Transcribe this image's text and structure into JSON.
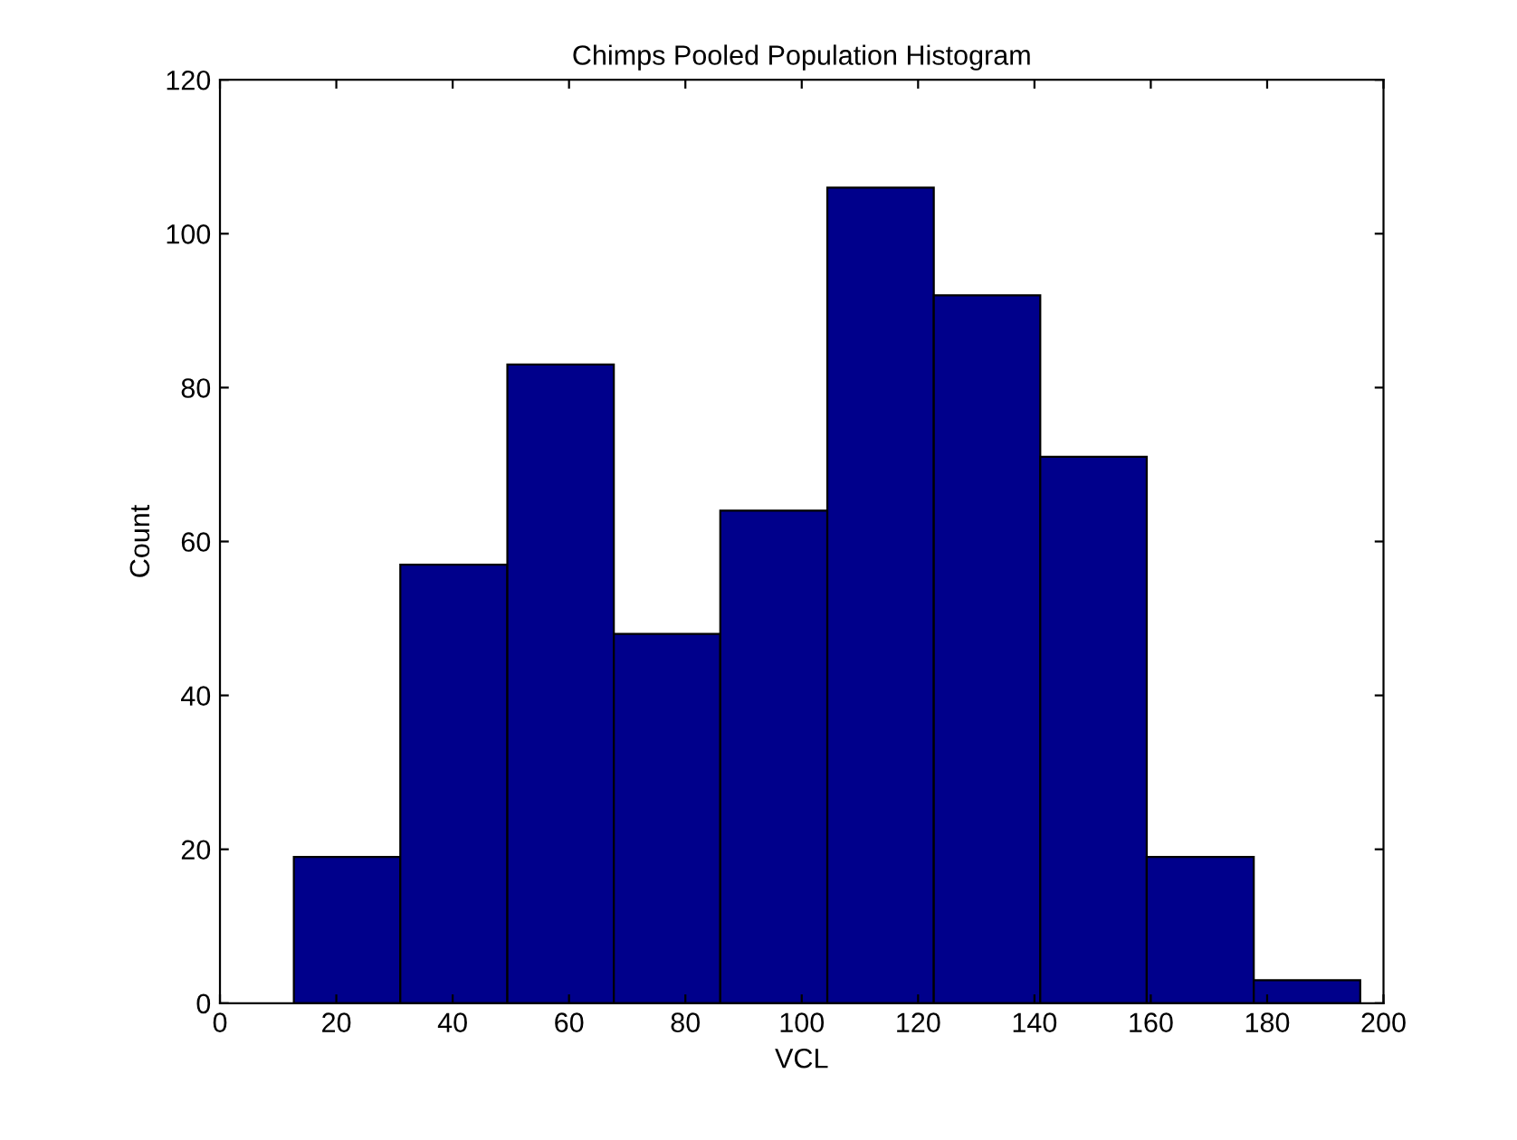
{
  "chart_data": {
    "type": "histogram",
    "title": "Chimps Pooled Population Histogram",
    "xlabel": "VCL",
    "ylabel": "Count",
    "bins": [
      12.7,
      31.0,
      49.4,
      67.7,
      86.0,
      104.4,
      122.7,
      141.0,
      159.3,
      177.7,
      196.0
    ],
    "values": [
      19,
      57,
      83,
      48,
      64,
      106,
      92,
      71,
      19,
      3
    ],
    "color": "#00008b",
    "xlim": [
      0,
      200
    ],
    "xticks": [
      0,
      20,
      40,
      60,
      80,
      100,
      120,
      140,
      160,
      180,
      200
    ],
    "ylim": [
      0,
      120
    ],
    "yticks": [
      0,
      20,
      40,
      60,
      80,
      100,
      120
    ],
    "grid": false
  }
}
